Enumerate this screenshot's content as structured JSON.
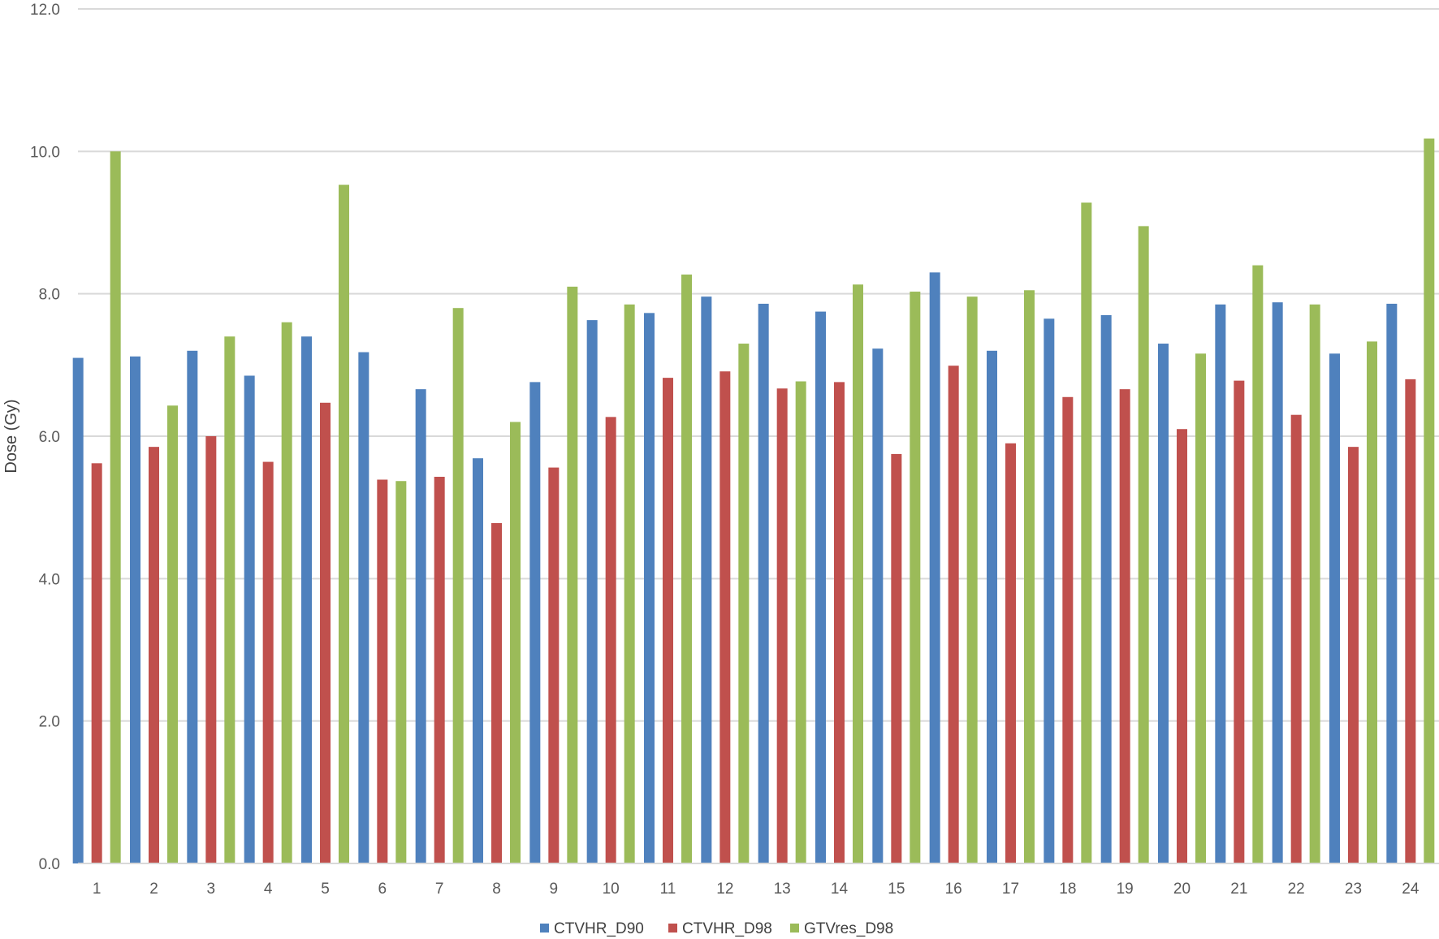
{
  "chart_data": {
    "type": "bar",
    "title": "",
    "xlabel": "",
    "ylabel": "Dose (Gy)",
    "ylim": [
      0,
      12
    ],
    "yticks": [
      "0.0",
      "2.0",
      "4.0",
      "6.0",
      "8.0",
      "10.0",
      "12.0"
    ],
    "grid": true,
    "legend_position": "bottom",
    "categories": [
      "1",
      "2",
      "3",
      "4",
      "5",
      "6",
      "7",
      "8",
      "9",
      "10",
      "11",
      "12",
      "13",
      "14",
      "15",
      "16",
      "17",
      "18",
      "19",
      "20",
      "21",
      "22",
      "23",
      "24"
    ],
    "series": [
      {
        "name": "CTVHR_D90",
        "color": "#4F81BD",
        "values": [
          7.1,
          7.12,
          7.2,
          6.85,
          7.4,
          7.18,
          6.66,
          5.69,
          6.76,
          7.63,
          7.73,
          7.96,
          7.86,
          7.75,
          7.23,
          8.3,
          7.2,
          7.65,
          7.7,
          7.3,
          7.85,
          7.88,
          7.16,
          7.86
        ]
      },
      {
        "name": "CTVHR_D98",
        "color": "#C0504D",
        "values": [
          5.62,
          5.85,
          6.0,
          5.64,
          6.47,
          5.39,
          5.43,
          4.78,
          5.56,
          6.27,
          6.82,
          6.91,
          6.67,
          6.76,
          5.75,
          6.99,
          5.9,
          6.55,
          6.66,
          6.1,
          6.78,
          6.3,
          5.85,
          6.8
        ]
      },
      {
        "name": "GTVres_D98",
        "color": "#9BBB59",
        "values": [
          10.0,
          6.43,
          7.4,
          7.6,
          9.53,
          5.37,
          7.8,
          6.2,
          8.1,
          7.85,
          8.27,
          7.3,
          6.77,
          8.13,
          8.03,
          7.96,
          8.05,
          9.28,
          8.95,
          7.16,
          8.4,
          7.85,
          7.33,
          10.18
        ]
      }
    ]
  }
}
